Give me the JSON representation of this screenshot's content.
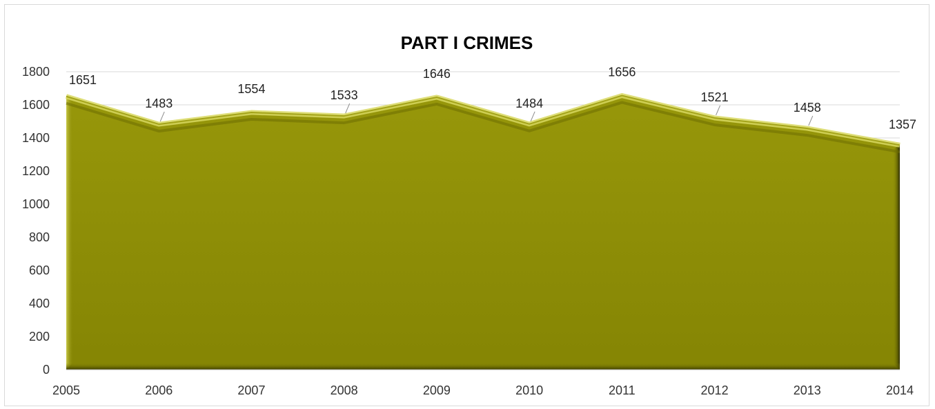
{
  "chart_data": {
    "type": "area",
    "title": "PART I CRIMES",
    "xlabel": "",
    "ylabel": "",
    "x": [
      "2005",
      "2006",
      "2007",
      "2008",
      "2009",
      "2010",
      "2011",
      "2012",
      "2013",
      "2014"
    ],
    "values": [
      1651,
      1483,
      1554,
      1533,
      1646,
      1484,
      1656,
      1521,
      1458,
      1357
    ],
    "ylim": [
      0,
      1800
    ],
    "yticks": [
      0,
      200,
      400,
      600,
      800,
      1000,
      1200,
      1400,
      1600,
      1800
    ],
    "grid": true,
    "legend": "none",
    "colors": {
      "fill": "#8a8a05",
      "fill_dark": "#5b5b00",
      "highlight": "#d8d860",
      "grid": "#d9d9d9",
      "axis": "#bfbfbf"
    }
  }
}
